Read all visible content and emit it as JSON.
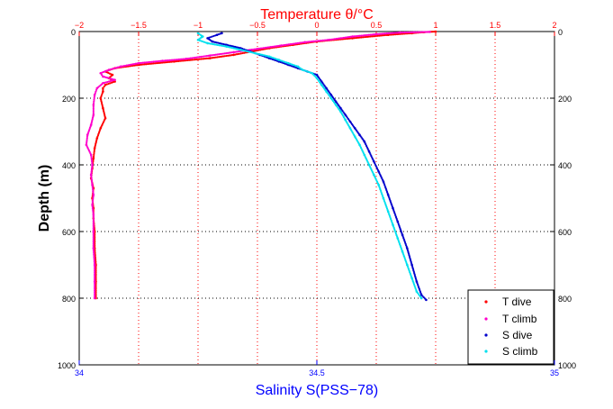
{
  "chart_data": {
    "type": "scatter",
    "ylabel": "Depth (m)",
    "top_axis": {
      "label": "Temperature θ/°C",
      "range": [
        -2,
        2
      ],
      "ticks": [
        "−2",
        "−1.5",
        "−1",
        "−0.5",
        "0",
        "0.5",
        "1",
        "1.5",
        "2"
      ],
      "color": "#ff0000"
    },
    "bottom_axis": {
      "label": "Salinity S(PSS−78)",
      "range": [
        34,
        35
      ],
      "ticks": [
        "34",
        "34.5",
        "35"
      ],
      "color": "#0000ff"
    },
    "y_axis": {
      "range": [
        0,
        1000
      ],
      "reversed": true,
      "ticks": [
        "0",
        "200",
        "400",
        "600",
        "800",
        "1000"
      ]
    },
    "grid": true,
    "legend_position": "bottom-right",
    "series": [
      {
        "name": "T dive",
        "axis": "top",
        "color": "#ff0000",
        "points": [
          [
            1.0,
            0
          ],
          [
            0.9,
            2
          ],
          [
            0.8,
            5
          ],
          [
            0.6,
            10
          ],
          [
            0.3,
            20
          ],
          [
            0.0,
            30
          ],
          [
            -0.2,
            40
          ],
          [
            -0.4,
            50
          ],
          [
            -0.55,
            60
          ],
          [
            -0.7,
            70
          ],
          [
            -0.9,
            80
          ],
          [
            -1.2,
            90
          ],
          [
            -1.5,
            100
          ],
          [
            -1.7,
            110
          ],
          [
            -1.78,
            120
          ],
          [
            -1.72,
            130
          ],
          [
            -1.75,
            140
          ],
          [
            -1.7,
            150
          ],
          [
            -1.78,
            160
          ],
          [
            -1.8,
            170
          ],
          [
            -1.8,
            180
          ],
          [
            -1.82,
            200
          ],
          [
            -1.8,
            230
          ],
          [
            -1.78,
            260
          ],
          [
            -1.82,
            290
          ],
          [
            -1.85,
            320
          ],
          [
            -1.87,
            350
          ],
          [
            -1.88,
            380
          ],
          [
            -1.89,
            410
          ],
          [
            -1.9,
            440
          ],
          [
            -1.88,
            470
          ],
          [
            -1.89,
            500
          ],
          [
            -1.88,
            530
          ],
          [
            -1.88,
            560
          ],
          [
            -1.87,
            600
          ],
          [
            -1.87,
            650
          ],
          [
            -1.86,
            700
          ],
          [
            -1.86,
            750
          ],
          [
            -1.86,
            800
          ]
        ]
      },
      {
        "name": "T climb",
        "axis": "top",
        "color": "#ff00cc",
        "points": [
          [
            0.95,
            1
          ],
          [
            0.7,
            3
          ],
          [
            0.5,
            8
          ],
          [
            0.3,
            15
          ],
          [
            0.1,
            25
          ],
          [
            -0.1,
            32
          ],
          [
            -0.3,
            42
          ],
          [
            -0.5,
            52
          ],
          [
            -0.7,
            62
          ],
          [
            -0.9,
            72
          ],
          [
            -1.1,
            82
          ],
          [
            -1.3,
            88
          ],
          [
            -1.5,
            95
          ],
          [
            -1.65,
            105
          ],
          [
            -1.75,
            115
          ],
          [
            -1.82,
            125
          ],
          [
            -1.8,
            135
          ],
          [
            -1.7,
            145
          ],
          [
            -1.8,
            155
          ],
          [
            -1.85,
            170
          ],
          [
            -1.87,
            190
          ],
          [
            -1.88,
            220
          ],
          [
            -1.88,
            250
          ],
          [
            -1.9,
            280
          ],
          [
            -1.93,
            310
          ],
          [
            -1.94,
            340
          ],
          [
            -1.9,
            370
          ],
          [
            -1.89,
            400
          ],
          [
            -1.9,
            430
          ],
          [
            -1.89,
            460
          ],
          [
            -1.88,
            490
          ],
          [
            -1.89,
            520
          ],
          [
            -1.88,
            550
          ],
          [
            -1.88,
            600
          ],
          [
            -1.88,
            650
          ],
          [
            -1.87,
            700
          ],
          [
            -1.87,
            750
          ],
          [
            -1.87,
            800
          ]
        ]
      },
      {
        "name": "S dive",
        "axis": "bottom",
        "color": "#0000cc",
        "points": [
          [
            34.3,
            5
          ],
          [
            34.29,
            10
          ],
          [
            34.27,
            20
          ],
          [
            34.28,
            30
          ],
          [
            34.31,
            40
          ],
          [
            34.34,
            50
          ],
          [
            34.36,
            60
          ],
          [
            34.38,
            70
          ],
          [
            34.4,
            80
          ],
          [
            34.42,
            90
          ],
          [
            34.44,
            100
          ],
          [
            34.46,
            110
          ],
          [
            34.48,
            120
          ],
          [
            34.5,
            130
          ],
          [
            34.51,
            150
          ],
          [
            34.52,
            170
          ],
          [
            34.53,
            190
          ],
          [
            34.54,
            210
          ],
          [
            34.55,
            230
          ],
          [
            34.56,
            250
          ],
          [
            34.57,
            270
          ],
          [
            34.58,
            290
          ],
          [
            34.59,
            310
          ],
          [
            34.6,
            330
          ],
          [
            34.61,
            360
          ],
          [
            34.62,
            390
          ],
          [
            34.63,
            420
          ],
          [
            34.64,
            450
          ],
          [
            34.65,
            490
          ],
          [
            34.66,
            530
          ],
          [
            34.67,
            570
          ],
          [
            34.68,
            610
          ],
          [
            34.69,
            650
          ],
          [
            34.7,
            700
          ],
          [
            34.71,
            750
          ],
          [
            34.72,
            790
          ],
          [
            34.73,
            805
          ]
        ]
      },
      {
        "name": "S climb",
        "axis": "bottom",
        "color": "#00e0ee",
        "points": [
          [
            34.25,
            5
          ],
          [
            34.26,
            15
          ],
          [
            34.25,
            25
          ],
          [
            34.27,
            35
          ],
          [
            34.31,
            45
          ],
          [
            34.34,
            55
          ],
          [
            34.37,
            65
          ],
          [
            34.4,
            75
          ],
          [
            34.42,
            85
          ],
          [
            34.44,
            95
          ],
          [
            34.46,
            105
          ],
          [
            34.47,
            115
          ],
          [
            34.49,
            125
          ],
          [
            34.5,
            140
          ],
          [
            34.51,
            160
          ],
          [
            34.52,
            180
          ],
          [
            34.53,
            200
          ],
          [
            34.54,
            220
          ],
          [
            34.55,
            240
          ],
          [
            34.56,
            265
          ],
          [
            34.57,
            290
          ],
          [
            34.58,
            315
          ],
          [
            34.59,
            340
          ],
          [
            34.6,
            370
          ],
          [
            34.61,
            400
          ],
          [
            34.62,
            430
          ],
          [
            34.63,
            460
          ],
          [
            34.64,
            500
          ],
          [
            34.65,
            540
          ],
          [
            34.66,
            580
          ],
          [
            34.67,
            620
          ],
          [
            34.68,
            660
          ],
          [
            34.69,
            700
          ],
          [
            34.7,
            740
          ],
          [
            34.71,
            780
          ],
          [
            34.72,
            800
          ]
        ]
      }
    ]
  }
}
